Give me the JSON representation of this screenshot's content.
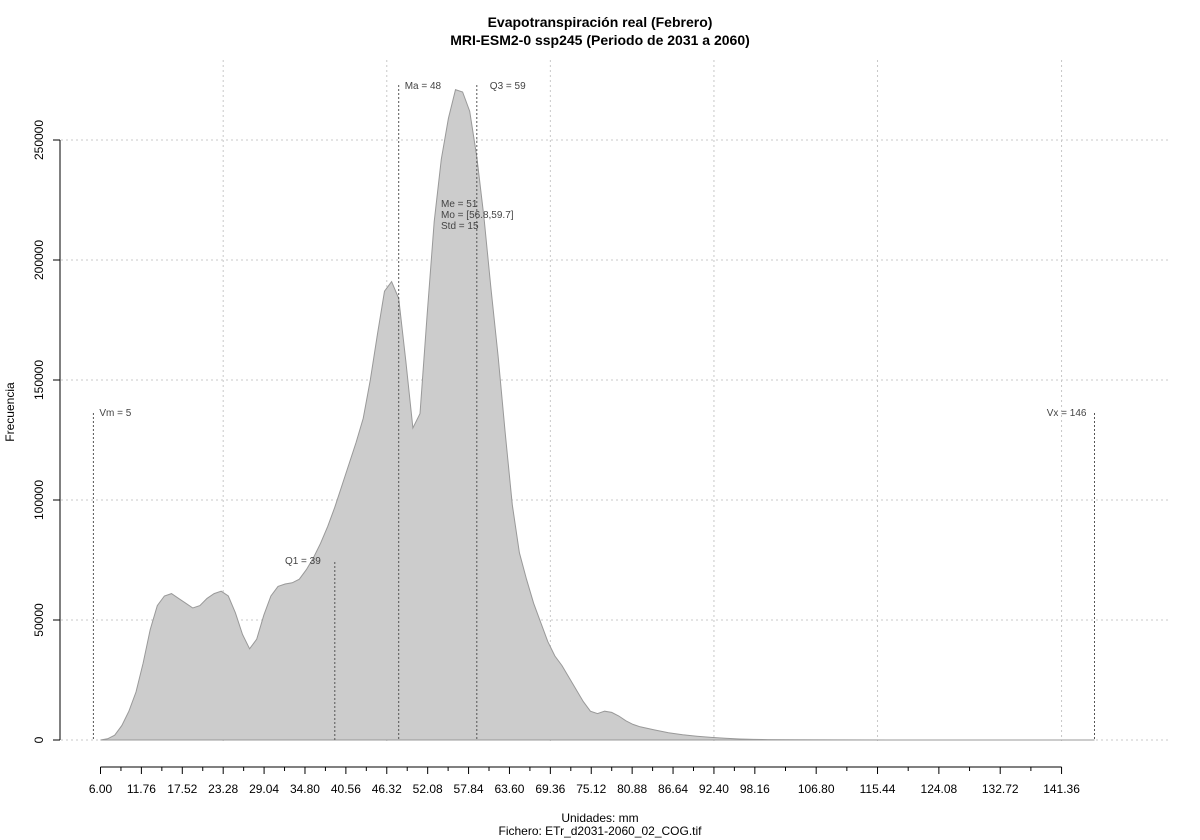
{
  "chart_data": {
    "type": "area",
    "title": "Evapotranspiración real (Febrero)",
    "subtitle": "MRI-ESM2-0 ssp245 (Periodo de 2031 a 2060)",
    "xlabel": "Unidades: mm",
    "ylabel": "Frecuencia",
    "file_label": "Fichero: ETr_d2031-2060_02_COG.tif",
    "xlim": [
      6.0,
      141.36
    ],
    "ylim": [
      0,
      250000
    ],
    "x_ticks": [
      "6.00",
      "11.76",
      "17.52",
      "23.28",
      "29.04",
      "34.80",
      "40.56",
      "46.32",
      "52.08",
      "57.84",
      "63.60",
      "69.36",
      "75.12",
      "80.88",
      "86.64",
      "92.40",
      "98.16",
      "106.80",
      "115.44",
      "124.08",
      "132.72",
      "141.36"
    ],
    "y_ticks": [
      0,
      50000,
      100000,
      150000,
      200000,
      250000
    ],
    "grid": true,
    "fill_color": "#cccccc",
    "stroke_color": "#999999",
    "x": [
      6.0,
      7.0,
      8.0,
      9.0,
      10.0,
      11.0,
      12.0,
      13.0,
      14.0,
      15.0,
      16.0,
      17.0,
      18.0,
      19.0,
      20.0,
      21.0,
      22.0,
      23.0,
      24.0,
      25.0,
      26.0,
      27.0,
      28.0,
      29.0,
      30.0,
      31.0,
      32.0,
      33.0,
      34.0,
      35.0,
      36.0,
      37.0,
      38.0,
      39.0,
      40.0,
      41.0,
      42.0,
      43.0,
      44.0,
      45.0,
      46.0,
      47.0,
      48.0,
      49.0,
      50.0,
      51.0,
      52.0,
      53.0,
      54.0,
      55.0,
      56.0,
      57.0,
      58.0,
      59.0,
      60.0,
      61.0,
      62.0,
      63.0,
      64.0,
      65.0,
      66.0,
      67.0,
      68.0,
      69.0,
      70.0,
      71.0,
      72.0,
      73.0,
      74.0,
      75.0,
      76.0,
      77.0,
      78.0,
      79.0,
      80.0,
      81.0,
      82.0,
      84.0,
      86.0,
      88.0,
      90.0,
      92.0,
      94.0,
      96.0,
      98.0,
      100.0,
      104.0,
      110.0,
      120.0,
      130.0,
      140.0,
      146.0
    ],
    "y": [
      0,
      500,
      2000,
      6000,
      12000,
      20000,
      32000,
      46000,
      56000,
      60000,
      61000,
      59000,
      57000,
      55000,
      56000,
      59000,
      61000,
      62000,
      60000,
      53000,
      44000,
      38000,
      42000,
      52000,
      60000,
      64000,
      65000,
      65500,
      67000,
      71000,
      76000,
      82000,
      89000,
      97000,
      106000,
      115000,
      124000,
      134000,
      150000,
      169000,
      187000,
      191000,
      184000,
      158000,
      130000,
      136000,
      177000,
      216000,
      242000,
      259000,
      271000,
      270000,
      262000,
      243000,
      218000,
      188000,
      160000,
      128000,
      98000,
      78000,
      67000,
      57000,
      49000,
      41000,
      35000,
      31000,
      26000,
      21000,
      16000,
      12000,
      11000,
      12000,
      11500,
      10000,
      8000,
      6500,
      5500,
      4200,
      3000,
      2200,
      1600,
      1100,
      700,
      400,
      250,
      150,
      80,
      40,
      20,
      10,
      5,
      0
    ],
    "annotations": {
      "vm": {
        "x": 5,
        "label": "Vm = 5"
      },
      "q1": {
        "x": 39,
        "label": "Q1 = 39"
      },
      "ma": {
        "x": 48,
        "label": "Ma = 48"
      },
      "q3": {
        "x": 59,
        "label": "Q3 = 59"
      },
      "vx": {
        "x": 146,
        "label": "Vx = 146"
      },
      "stats": [
        "Me = 51",
        "Mo = [56.8,59.7]",
        "Std = 15"
      ]
    }
  }
}
